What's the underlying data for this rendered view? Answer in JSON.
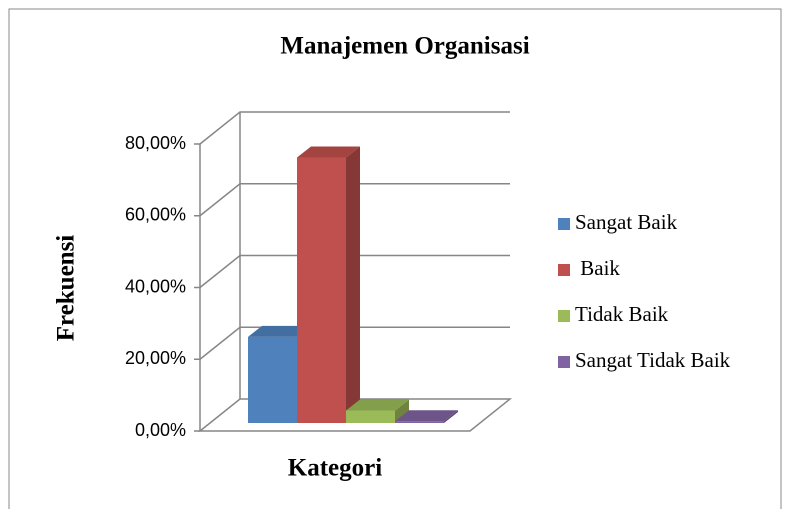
{
  "chart_data": {
    "type": "bar3d",
    "title": "Manajemen Organisasi",
    "x_label": "Kategori",
    "y_label": "Frekuensi",
    "series": [
      {
        "name": "Sangat Baik",
        "color": "#4f81bd",
        "values": [
          24
        ]
      },
      {
        "name": " Baik",
        "color": "#c0504d",
        "values": [
          74
        ]
      },
      {
        "name": "Tidak Baik",
        "color": "#9bbb59",
        "values": [
          3.5
        ]
      },
      {
        "name": "Sangat Tidak Baik",
        "color": "#8064a2",
        "values": [
          0.5
        ]
      }
    ],
    "ylim": [
      0,
      80
    ],
    "yticks": [
      {
        "value": 0,
        "label": "0,00%"
      },
      {
        "value": 20,
        "label": "20,00%"
      },
      {
        "value": 40,
        "label": "40,00%"
      },
      {
        "value": 60,
        "label": "60,00%"
      },
      {
        "value": 80,
        "label": "80,00%"
      }
    ],
    "grid": true,
    "legend": "right"
  }
}
